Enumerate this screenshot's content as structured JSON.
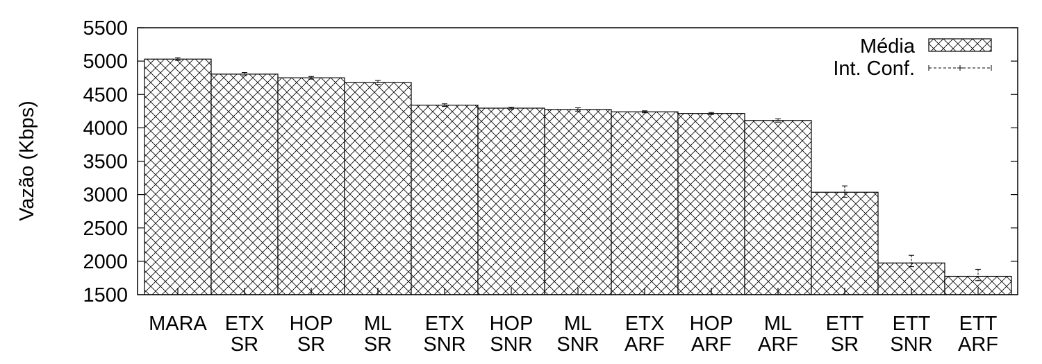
{
  "chart_data": {
    "type": "bar",
    "title": "",
    "xlabel": "",
    "ylabel": "Vazão (Kbps)",
    "ylim": [
      1500,
      5500
    ],
    "yticks": [
      1500,
      2000,
      2500,
      3000,
      3500,
      4000,
      4500,
      5000,
      5500
    ],
    "categories": [
      [
        "MARA"
      ],
      [
        "ETX",
        "SR"
      ],
      [
        "HOP",
        "SR"
      ],
      [
        "ML",
        "SR"
      ],
      [
        "ETX",
        "SNR"
      ],
      [
        "HOP",
        "SNR"
      ],
      [
        "ML",
        "SNR"
      ],
      [
        "ETX",
        "ARF"
      ],
      [
        "HOP",
        "ARF"
      ],
      [
        "ML",
        "ARF"
      ],
      [
        "ETT",
        "SR"
      ],
      [
        "ETT",
        "SNR"
      ],
      [
        "ETT",
        "ARF"
      ]
    ],
    "series": [
      {
        "name": "Média",
        "values": [
          5030,
          4805,
          4750,
          4680,
          4340,
          4295,
          4275,
          4240,
          4215,
          4110,
          3035,
          1975,
          1775
        ]
      }
    ],
    "conf_interval": {
      "name": "Int. Conf.",
      "low": [
        5010,
        4780,
        4730,
        4650,
        4320,
        4280,
        4250,
        4225,
        4200,
        4085,
        2960,
        1920,
        1710
      ],
      "high": [
        5050,
        4830,
        4770,
        4710,
        4360,
        4310,
        4300,
        4255,
        4230,
        4135,
        3130,
        2090,
        1880
      ]
    },
    "legend_position": "top-right",
    "grid": false
  }
}
